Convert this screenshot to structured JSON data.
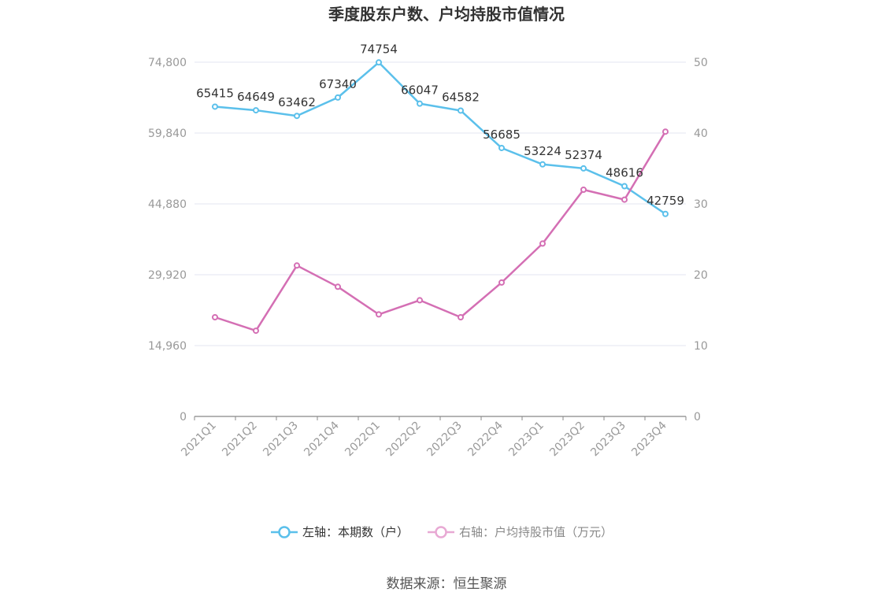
{
  "chart_data": {
    "type": "line",
    "title": "季度股东户数、户均持股市值情况",
    "categories": [
      "2021Q1",
      "2021Q2",
      "2021Q3",
      "2021Q4",
      "2022Q1",
      "2022Q2",
      "2022Q3",
      "2022Q4",
      "2023Q1",
      "2023Q2",
      "2023Q3",
      "2023Q4"
    ],
    "left_axis": {
      "ticks": [
        "0",
        "14,960",
        "29,920",
        "44,880",
        "59,840",
        "74,800"
      ],
      "ylim": [
        0,
        74800
      ]
    },
    "right_axis": {
      "ticks": [
        "0",
        "10",
        "20",
        "30",
        "40",
        "50"
      ],
      "ylim": [
        0,
        50
      ]
    },
    "grid": true,
    "legend_position": "bottom",
    "series": [
      {
        "name": "左轴：本期数（户）",
        "axis": "left",
        "color": "#5bc0eb",
        "values": [
          65415,
          64649,
          63462,
          67340,
          74754,
          66047,
          64582,
          56685,
          53224,
          52374,
          48616,
          42759
        ],
        "labels": [
          "65415",
          "64649",
          "63462",
          "67340",
          "74754",
          "66047",
          "64582",
          "56685",
          "53224",
          "52374",
          "48616",
          "42759"
        ]
      },
      {
        "name": "右轴：户均持股市值（万元）",
        "axis": "right",
        "color": "#d46fb4",
        "values": [
          14.0,
          12.1,
          21.3,
          18.3,
          14.4,
          16.4,
          14.0,
          18.9,
          24.4,
          32.0,
          30.6,
          40.2
        ]
      }
    ]
  },
  "source_text": "数据来源：恒生聚源"
}
